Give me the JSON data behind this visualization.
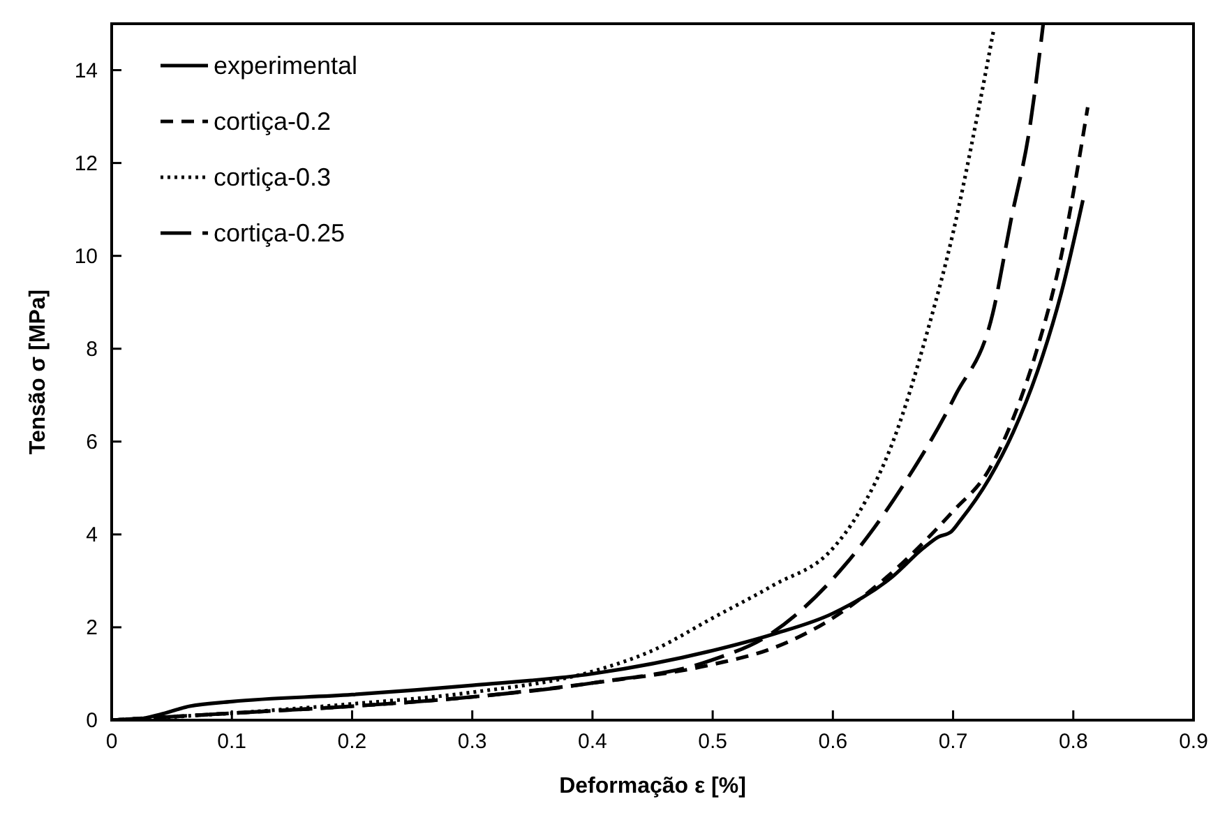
{
  "chart_data": {
    "type": "line",
    "xlabel": "Deformação ε [%]",
    "ylabel": "Tensão σ [MPa]",
    "xlim": [
      0,
      0.9
    ],
    "ylim": [
      0,
      15
    ],
    "xticks": [
      0,
      0.1,
      0.2,
      0.3,
      0.4,
      0.5,
      0.6,
      0.7,
      0.8,
      0.9
    ],
    "yticks": [
      0,
      2,
      4,
      6,
      8,
      10,
      12,
      14
    ],
    "grid": false,
    "legend": "top left",
    "series": [
      {
        "name": "experimental",
        "color": "#000000",
        "line_style": "solid",
        "x": [
          0.02,
          0.04,
          0.065,
          0.1,
          0.2,
          0.3,
          0.4,
          0.5,
          0.55,
          0.6,
          0.65,
          0.675,
          0.688,
          0.698,
          0.706,
          0.73,
          0.75,
          0.77,
          0.79,
          0.808
        ],
        "values": [
          0,
          0.12,
          0.3,
          0.4,
          0.55,
          0.75,
          1.0,
          1.5,
          1.85,
          2.3,
          3.1,
          3.7,
          3.95,
          4.05,
          4.3,
          5.2,
          6.2,
          7.5,
          9.2,
          11.2
        ]
      },
      {
        "name": "cortiça-0.2",
        "color": "#000000",
        "line_style": "dashed",
        "x": [
          0,
          0.1,
          0.2,
          0.3,
          0.4,
          0.5,
          0.55,
          0.6,
          0.65,
          0.7,
          0.73,
          0.75,
          0.77,
          0.79,
          0.812
        ],
        "values": [
          0,
          0.15,
          0.3,
          0.5,
          0.8,
          1.2,
          1.55,
          2.2,
          3.2,
          4.5,
          5.4,
          6.5,
          8,
          10,
          13.2
        ]
      },
      {
        "name": "cortiça-0.3",
        "color": "#000000",
        "line_style": "dotted",
        "x": [
          0,
          0.1,
          0.2,
          0.3,
          0.4,
          0.45,
          0.5,
          0.55,
          0.6,
          0.62,
          0.65,
          0.68,
          0.7,
          0.72,
          0.734
        ],
        "values": [
          0,
          0.15,
          0.35,
          0.6,
          1.05,
          1.5,
          2.2,
          2.9,
          3.7,
          4.4,
          6,
          8.5,
          10.5,
          13,
          14.9
        ]
      },
      {
        "name": "cortiça-0.25",
        "color": "#000000",
        "line_style": "longdash",
        "x": [
          0,
          0.1,
          0.2,
          0.3,
          0.4,
          0.5,
          0.546,
          0.611,
          0.657,
          0.702,
          0.733,
          0.748,
          0.764,
          0.775
        ],
        "values": [
          0,
          0.15,
          0.3,
          0.5,
          0.8,
          1.3,
          1.82,
          3.37,
          5.0,
          7.0,
          8.76,
          10.75,
          12.8,
          15
        ]
      }
    ]
  }
}
